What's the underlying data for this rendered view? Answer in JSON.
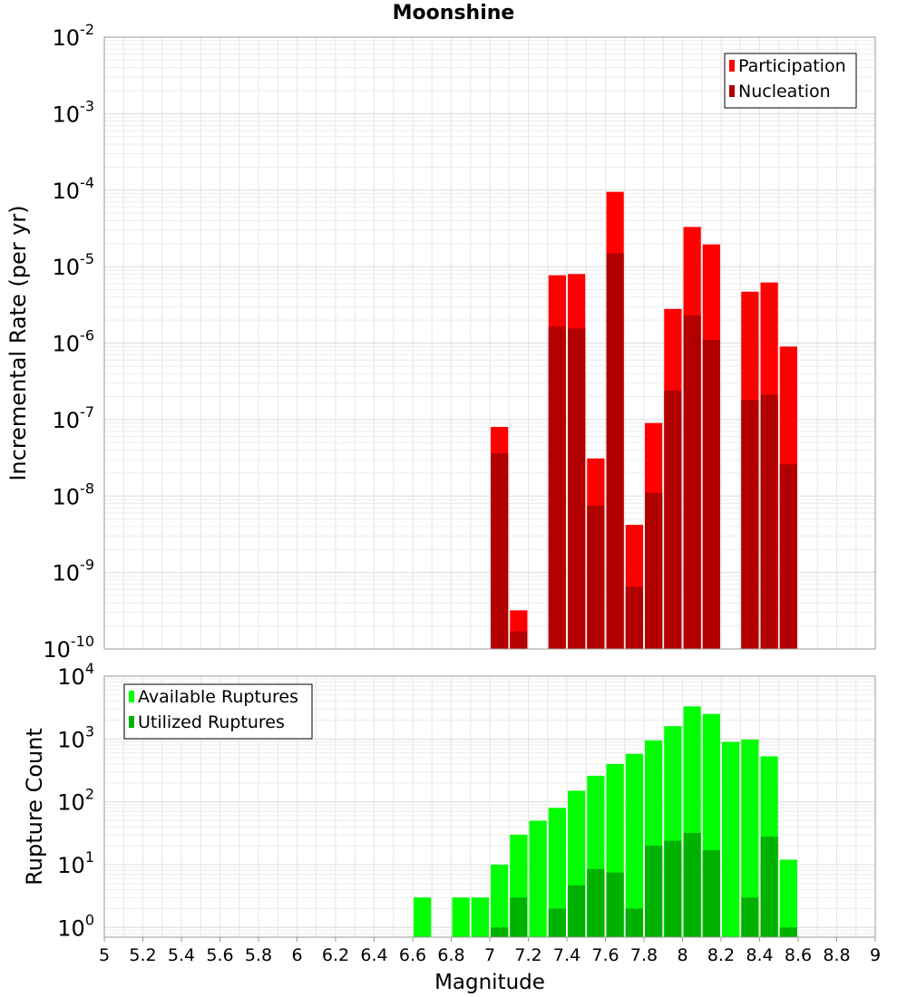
{
  "chart_data": [
    {
      "type": "bar",
      "panel": "top",
      "title": "Moonshine",
      "xlabel": "",
      "ylabel": "Incremental Rate (per yr)",
      "yscale": "log",
      "ylim": [
        1e-10,
        0.01
      ],
      "xlim": [
        5,
        9
      ],
      "grid": true,
      "legend_position": "top-right",
      "y_ticks": [
        {
          "base": "10",
          "exp": "-10"
        },
        {
          "base": "10",
          "exp": "-9"
        },
        {
          "base": "10",
          "exp": "-8"
        },
        {
          "base": "10",
          "exp": "-7"
        },
        {
          "base": "10",
          "exp": "-6"
        },
        {
          "base": "10",
          "exp": "-5"
        },
        {
          "base": "10",
          "exp": "-4"
        },
        {
          "base": "10",
          "exp": "-3"
        },
        {
          "base": "10",
          "exp": "-2"
        }
      ],
      "categories": [
        7.05,
        7.15,
        7.35,
        7.45,
        7.55,
        7.65,
        7.75,
        7.85,
        7.95,
        8.05,
        8.15,
        8.35,
        8.45,
        8.55
      ],
      "series": [
        {
          "name": "Participation",
          "color": "#ff0000",
          "values": [
            8e-08,
            3.2e-10,
            7.7e-06,
            8e-06,
            3.1e-08,
            9.5e-05,
            4.2e-09,
            9e-08,
            2.8e-06,
            3.3e-05,
            1.95e-05,
            4.7e-06,
            6.2e-06,
            9e-07
          ]
        },
        {
          "name": "Nucleation",
          "color": "#b20000",
          "values": [
            3.6e-08,
            1.7e-10,
            1.65e-06,
            1.55e-06,
            7.5e-09,
            1.5e-05,
            6.5e-10,
            1.1e-08,
            2.4e-07,
            2.3e-06,
            1.1e-06,
            1.8e-07,
            2.1e-07,
            2.6e-08
          ]
        }
      ]
    },
    {
      "type": "bar",
      "panel": "bottom",
      "xlabel": "Magnitude",
      "ylabel": "Rupture Count",
      "yscale": "log",
      "ylim": [
        0.7,
        10000
      ],
      "xlim": [
        5,
        9
      ],
      "grid": true,
      "legend_position": "top-left",
      "x_ticks": [
        "5",
        "5.2",
        "5.4",
        "5.6",
        "5.8",
        "6",
        "6.2",
        "6.4",
        "6.6",
        "6.8",
        "7",
        "7.2",
        "7.4",
        "7.6",
        "7.8",
        "8",
        "8.2",
        "8.4",
        "8.6",
        "8.8",
        "9"
      ],
      "y_ticks": [
        {
          "base": "10",
          "exp": "0"
        },
        {
          "base": "10",
          "exp": "1"
        },
        {
          "base": "10",
          "exp": "2"
        },
        {
          "base": "10",
          "exp": "3"
        },
        {
          "base": "10",
          "exp": "4"
        }
      ],
      "categories": [
        6.65,
        6.85,
        6.95,
        7.05,
        7.15,
        7.25,
        7.35,
        7.45,
        7.55,
        7.65,
        7.75,
        7.85,
        7.95,
        8.05,
        8.15,
        8.25,
        8.35,
        8.45,
        8.55
      ],
      "series": [
        {
          "name": "Available Ruptures",
          "color": "#00ff00",
          "values": [
            3,
            3,
            3,
            10,
            30,
            50,
            80,
            150,
            260,
            400,
            580,
            950,
            1600,
            3300,
            2500,
            900,
            980,
            530,
            12
          ]
        },
        {
          "name": "Utilized Ruptures",
          "color": "#00b200",
          "values": [
            0,
            0,
            0,
            1,
            3,
            0,
            2,
            4.7,
            8.5,
            7.5,
            2,
            20,
            24,
            32,
            17,
            0,
            3,
            28,
            1
          ]
        }
      ]
    }
  ]
}
